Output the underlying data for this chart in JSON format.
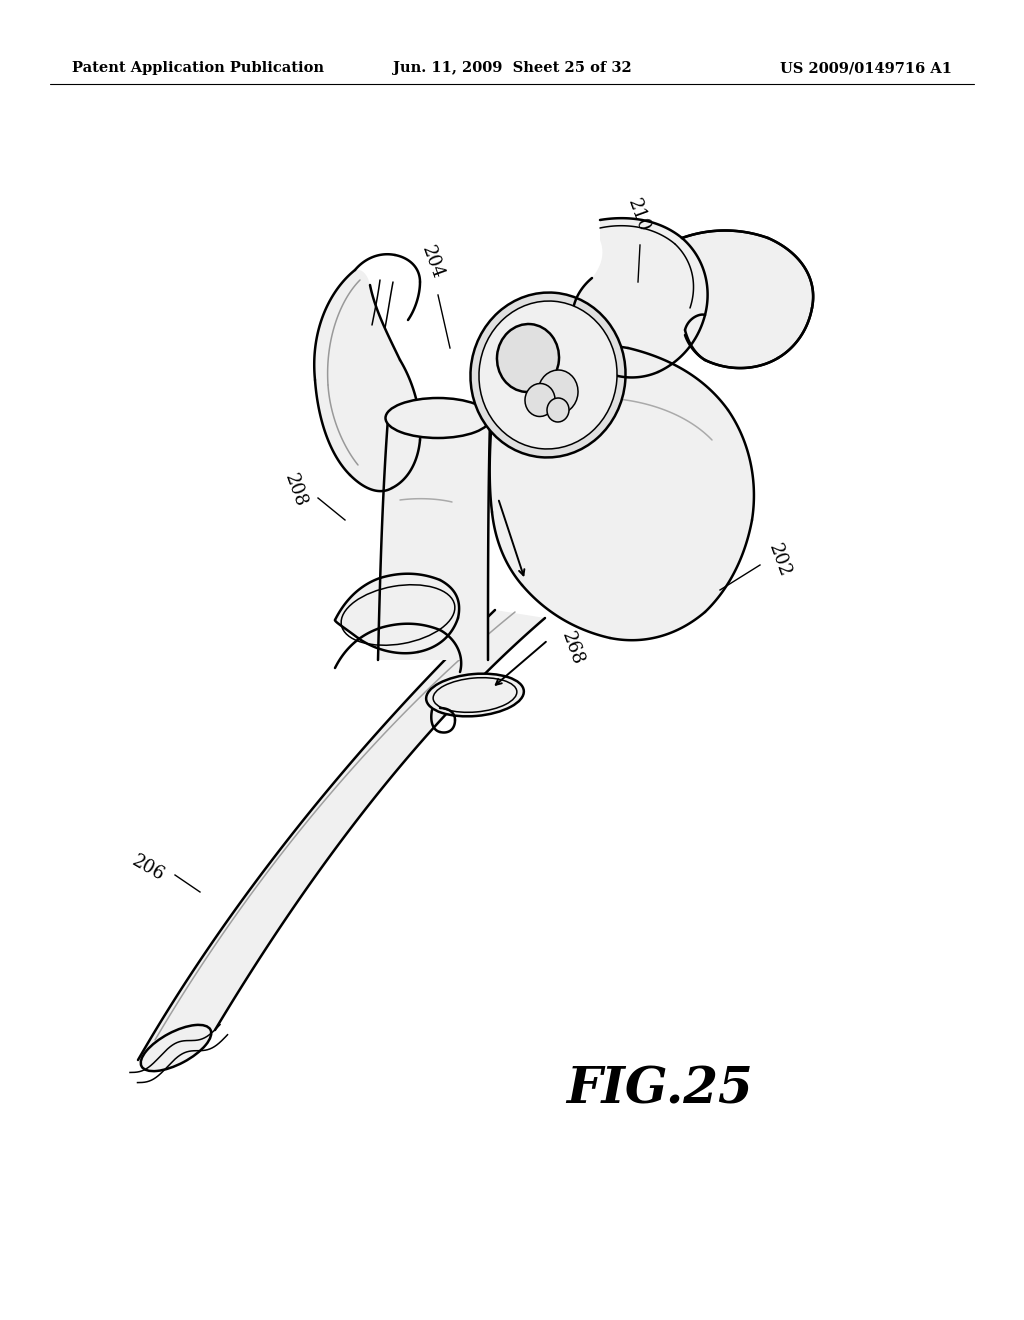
{
  "bg_color": "#ffffff",
  "header_left": "Patent Application Publication",
  "header_center": "Jun. 11, 2009  Sheet 25 of 32",
  "header_right": "US 2009/0149716 A1",
  "fig_label": "FIG.25",
  "text_color": "#000000",
  "header_fontsize": 10.5,
  "label_fontsize": 13,
  "fig_label_fontsize": 36,
  "line_color": "#000000",
  "fill_light": "#f0f0f0",
  "fill_mid": "#e0e0e0",
  "fill_dark": "#c8c8c8"
}
